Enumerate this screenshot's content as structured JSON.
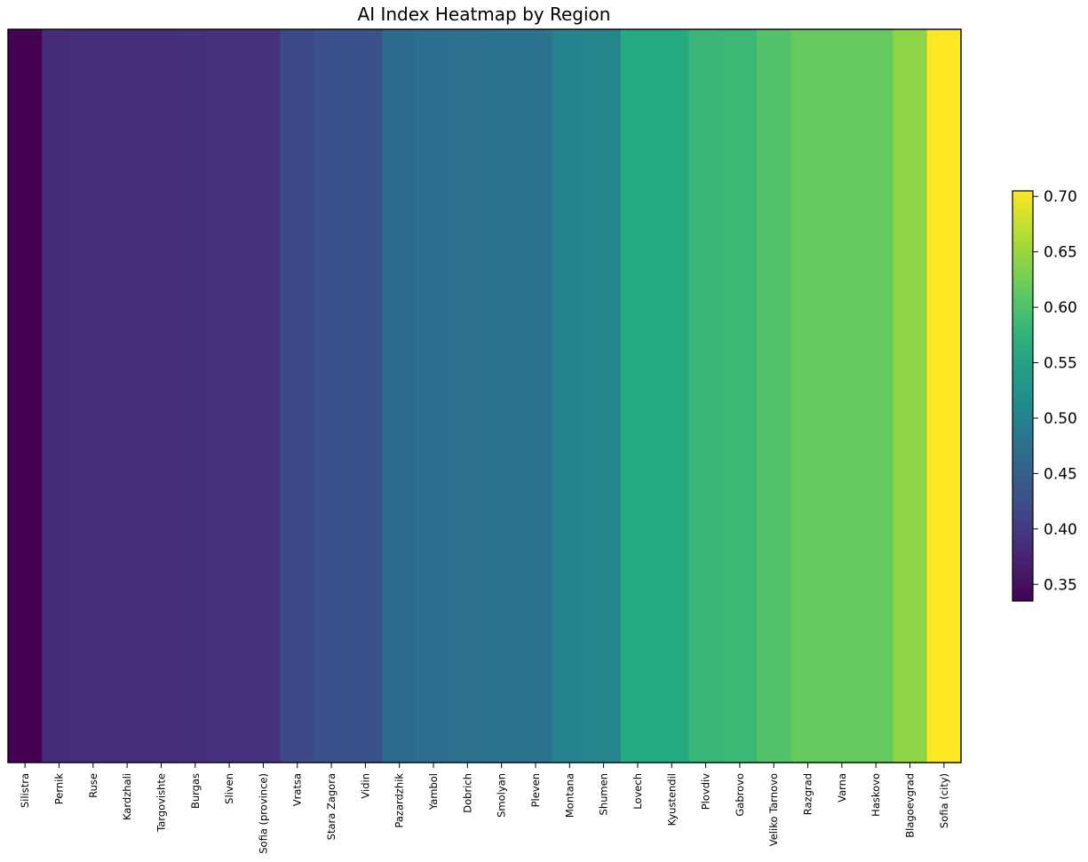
{
  "chart_data": {
    "type": "heatmap",
    "title": "AI Index Heatmap by Region",
    "xlabel": "",
    "ylabel": "",
    "categories": [
      "Silistra",
      "Pernik",
      "Ruse",
      "Kardzhali",
      "Targovishte",
      "Burgas",
      "Sliven",
      "Sofia (province)",
      "Vratsa",
      "Stara Zagora",
      "Vidin",
      "Pazardzhik",
      "Yambol",
      "Dobrich",
      "Smolyan",
      "Pleven",
      "Montana",
      "Shumen",
      "Lovech",
      "Kyustendil",
      "Plovdiv",
      "Gabrovo",
      "Veliko Tarnovo",
      "Razgrad",
      "Varna",
      "Haskovo",
      "Blagoevgrad",
      "Sofia (city)"
    ],
    "values": [
      0.335,
      0.383,
      0.385,
      0.385,
      0.385,
      0.388,
      0.389,
      0.389,
      0.418,
      0.428,
      0.428,
      0.468,
      0.473,
      0.475,
      0.478,
      0.478,
      0.503,
      0.505,
      0.563,
      0.563,
      0.583,
      0.585,
      0.603,
      0.618,
      0.618,
      0.618,
      0.643,
      0.705
    ],
    "colorbar": {
      "min": 0.335,
      "max": 0.705,
      "ticks": [
        "0.35",
        "0.40",
        "0.45",
        "0.50",
        "0.55",
        "0.60",
        "0.65",
        "0.70"
      ],
      "colormap": "viridis"
    },
    "grid": false,
    "legend": "none"
  }
}
